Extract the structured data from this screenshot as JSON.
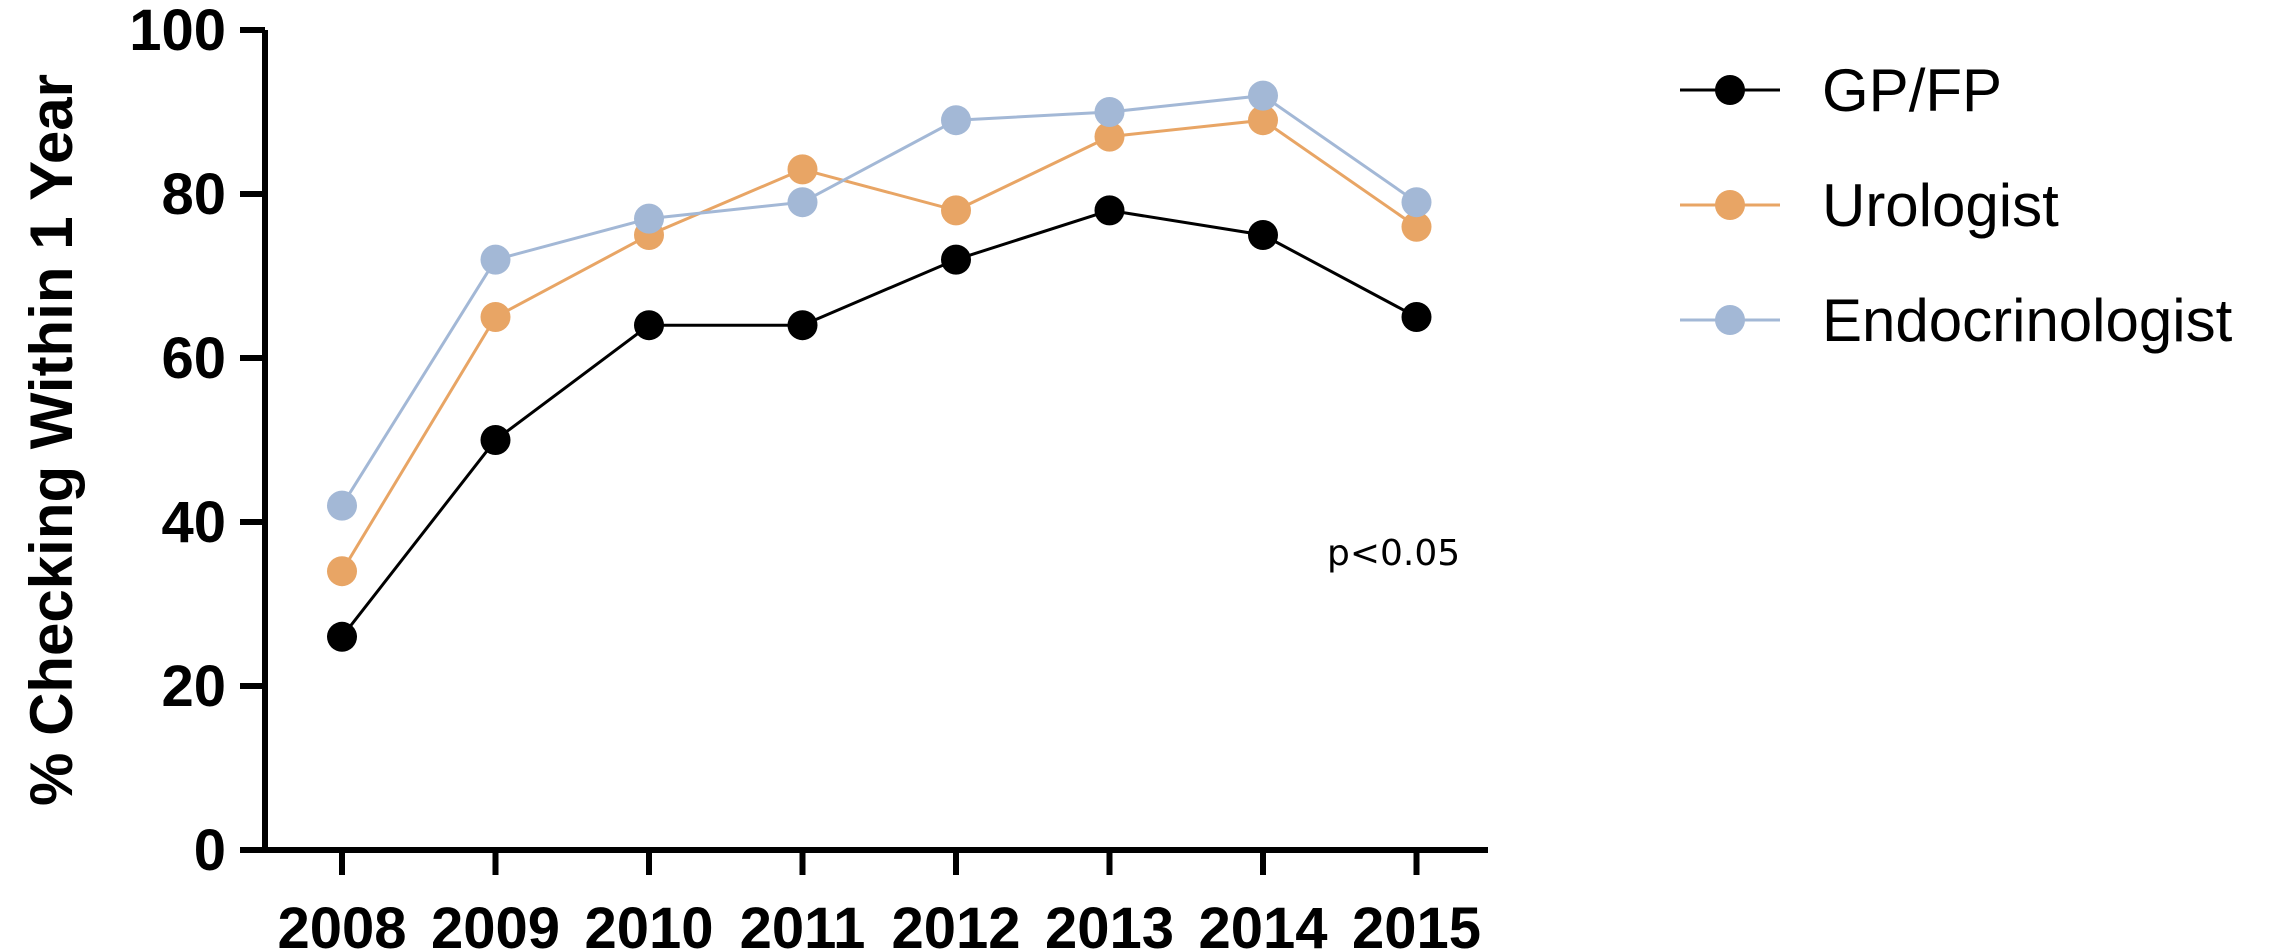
{
  "chart_data": {
    "type": "line",
    "categories": [
      "2008",
      "2009",
      "2010",
      "2011",
      "2012",
      "2013",
      "2014",
      "2015"
    ],
    "series": [
      {
        "name": "GP/FP",
        "color": "#000000",
        "values": [
          26,
          50,
          64,
          64,
          72,
          78,
          75,
          65
        ]
      },
      {
        "name": "Urologist",
        "color": "#E8A565",
        "values": [
          34,
          65,
          75,
          83,
          78,
          87,
          89,
          76
        ]
      },
      {
        "name": "Endocrinologist",
        "color": "#A3B8D6",
        "values": [
          42,
          72,
          77,
          79,
          89,
          90,
          92,
          79
        ]
      }
    ],
    "title": "",
    "xlabel": "",
    "ylabel": "% Checking Within 1 Year",
    "ylim": [
      0,
      100
    ],
    "yticks": [
      0,
      20,
      40,
      60,
      80,
      100
    ],
    "annotation": "p<0.05",
    "legend_position": "right",
    "grid": false
  }
}
